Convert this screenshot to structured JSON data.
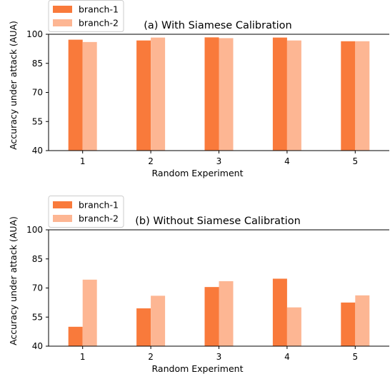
{
  "chart_data": [
    {
      "type": "bar",
      "title": "(a) With Siamese Calibration",
      "xlabel": "Random Experiment",
      "ylabel": "Accuracy under attack (AUA)",
      "categories": [
        "1",
        "2",
        "3",
        "4",
        "5"
      ],
      "ylim": [
        40,
        100
      ],
      "yticks": [
        40,
        55,
        70,
        85,
        100
      ],
      "legend_position": "top-left",
      "grid": false,
      "series": [
        {
          "name": "branch-1",
          "color": "#f97a3b",
          "values": [
            97.2,
            96.8,
            98.4,
            98.3,
            96.4
          ]
        },
        {
          "name": "branch-2",
          "color": "#fdb693",
          "values": [
            96.0,
            98.3,
            98.0,
            96.8,
            96.4
          ]
        }
      ]
    },
    {
      "type": "bar",
      "title": "(b) Without Siamese Calibration",
      "xlabel": "Random Experiment",
      "ylabel": "Accuracy under attack (AUA)",
      "categories": [
        "1",
        "2",
        "3",
        "4",
        "5"
      ],
      "ylim": [
        40,
        100
      ],
      "yticks": [
        40,
        55,
        70,
        85,
        100
      ],
      "legend_position": "top-left",
      "grid": false,
      "series": [
        {
          "name": "branch-1",
          "color": "#f97a3b",
          "values": [
            50.0,
            59.5,
            70.5,
            74.8,
            62.5
          ]
        },
        {
          "name": "branch-2",
          "color": "#fdb693",
          "values": [
            74.3,
            66.0,
            73.5,
            60.0,
            66.2
          ]
        }
      ]
    }
  ]
}
